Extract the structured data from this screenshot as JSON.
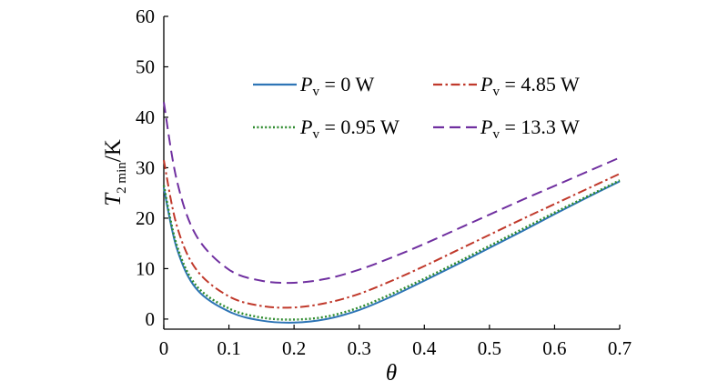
{
  "chart_data": {
    "type": "line",
    "xlabel": "θ",
    "ylabel": "T2 min/K",
    "ylabel_parts": {
      "main": "T",
      "sub": "2 min",
      "unit": "/K"
    },
    "xlim": [
      0,
      0.7
    ],
    "ylim": [
      -2,
      60
    ],
    "xticks": [
      "0",
      "0.1",
      "0.2",
      "0.3",
      "0.4",
      "0.5",
      "0.6",
      "0.7"
    ],
    "yticks": [
      "0",
      "10",
      "20",
      "30",
      "40",
      "50",
      "60"
    ],
    "grid": false,
    "legend_position": "top-right",
    "x": [
      0,
      0.02,
      0.05,
      0.1,
      0.15,
      0.2,
      0.25,
      0.3,
      0.35,
      0.4,
      0.45,
      0.5,
      0.55,
      0.6,
      0.65,
      0.7
    ],
    "series": [
      {
        "name": "Pv = 0 W",
        "name_parts": {
          "main": "P",
          "sub": "v",
          "rest": " = 0 W"
        },
        "color": "#2e75b6",
        "dash": "solid",
        "values": [
          26,
          14,
          6,
          1.5,
          -0.3,
          -0.7,
          0,
          1.8,
          4.5,
          7.6,
          10.8,
          14.1,
          17.4,
          20.8,
          24.1,
          27.3
        ]
      },
      {
        "name": "Pv = 0.95 W",
        "name_parts": {
          "main": "P",
          "sub": "v",
          "rest": " = 0.95 W"
        },
        "color": "#2e8b2e",
        "dash": "dotted",
        "values": [
          26.5,
          14.6,
          6.6,
          2.1,
          0.3,
          -0.1,
          0.5,
          2.3,
          5,
          8,
          11.2,
          14.5,
          17.8,
          21.1,
          24.3,
          27.5
        ]
      },
      {
        "name": "Pv = 4.85 W",
        "name_parts": {
          "main": "P",
          "sub": "v",
          "rest": " = 4.85 W"
        },
        "color": "#c0392b",
        "dash": "dashdot",
        "values": [
          31.5,
          18.5,
          9.8,
          4.5,
          2.6,
          2.3,
          3.2,
          5,
          7.6,
          10.5,
          13.6,
          16.7,
          19.8,
          22.8,
          25.8,
          28.8
        ]
      },
      {
        "name": "Pv = 13.3 W",
        "name_parts": {
          "main": "P",
          "sub": "v",
          "rest": " = 13.3 W"
        },
        "color": "#7030a0",
        "dash": "dashed",
        "values": [
          43,
          27.5,
          16.5,
          9.8,
          7.6,
          7.2,
          8,
          9.8,
          12.2,
          14.9,
          17.8,
          20.7,
          23.6,
          26.4,
          29.2,
          32
        ]
      }
    ]
  }
}
